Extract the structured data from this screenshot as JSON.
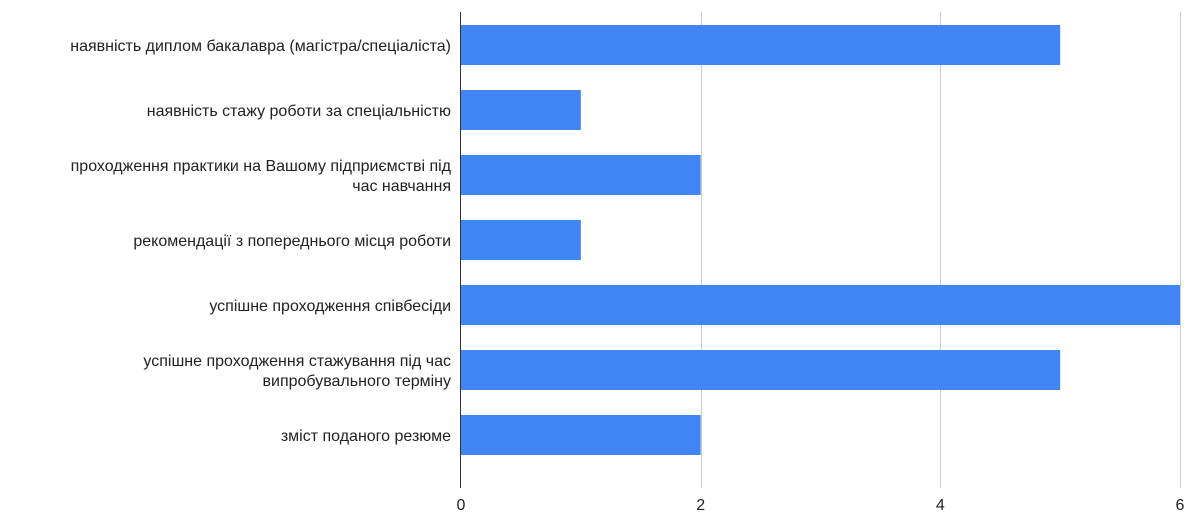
{
  "chart_data": {
    "type": "bar",
    "orientation": "horizontal",
    "categories": [
      [
        "наявність диплом бакалавра (магістра/спеціаліста)"
      ],
      [
        "наявність стажу роботи за спеціальністю"
      ],
      [
        "проходження практики на Вашому підприємстві під",
        "час навчання"
      ],
      [
        "рекомендації з попереднього місця роботи"
      ],
      [
        "успішне проходження співбесіди"
      ],
      [
        "успішне проходження стажування під час",
        "випробувального терміну"
      ],
      [
        "зміст поданого резюме"
      ]
    ],
    "values": [
      5,
      1,
      2,
      1,
      6,
      5,
      2
    ],
    "xlim": [
      0,
      6
    ],
    "xticks": [
      0,
      2,
      4,
      6
    ],
    "grid": true,
    "bar_color": "#4285f4",
    "grid_color": "#cccccc",
    "axis_color": "#333333"
  }
}
